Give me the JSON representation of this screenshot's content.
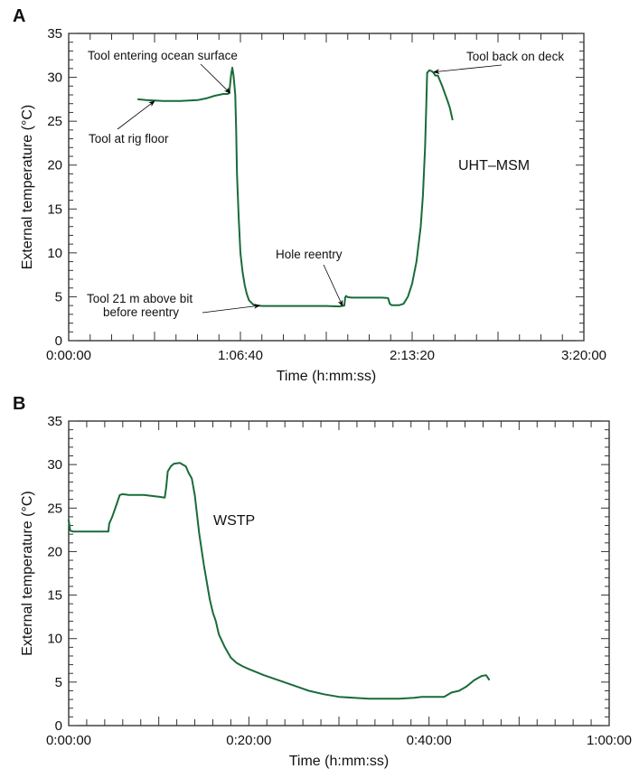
{
  "chart_data": [
    {
      "panel": "A",
      "type": "line",
      "title": "",
      "xlabel": "Time (h:mm:ss)",
      "ylabel": "External temperature (°C)",
      "xlim": [
        0,
        12000
      ],
      "ylim": [
        0,
        35
      ],
      "x_unit": "seconds",
      "x_ticks": [
        {
          "value": 0,
          "label": "0:00:00"
        },
        {
          "value": 4000,
          "label": "1:06:40"
        },
        {
          "value": 8000,
          "label": "2:13:20"
        },
        {
          "value": 12000,
          "label": "3:20:00"
        }
      ],
      "y_ticks": [
        0,
        5,
        10,
        15,
        20,
        25,
        30,
        35
      ],
      "grid": false,
      "series_label": "UHT–MSM",
      "series": [
        {
          "name": "UHT–MSM",
          "color": "#1a6b3a",
          "x": [
            1620,
            1800,
            2200,
            2600,
            3000,
            3200,
            3400,
            3600,
            3700,
            3740,
            3780,
            3810,
            3840,
            3880,
            3900,
            3920,
            3960,
            4000,
            4050,
            4100,
            4150,
            4200,
            4300,
            4400,
            4500,
            4600,
            5000,
            5500,
            6000,
            6300,
            6420,
            6440,
            6460,
            6500,
            6600,
            7000,
            7300,
            7440,
            7480,
            7520,
            7700,
            7800,
            7900,
            8000,
            8100,
            8200,
            8250,
            8300,
            8330,
            8350,
            8400,
            8460,
            8500,
            8540,
            8600,
            8650,
            8700,
            8760,
            8820,
            8880,
            8940
          ],
          "y": [
            27.5,
            27.4,
            27.3,
            27.3,
            27.4,
            27.6,
            27.9,
            28.1,
            28.1,
            28.2,
            30.2,
            31.1,
            30.2,
            28.0,
            24.0,
            19.0,
            14.0,
            10.0,
            7.8,
            6.3,
            5.3,
            4.6,
            4.1,
            4.0,
            3.95,
            3.95,
            3.95,
            3.95,
            3.95,
            3.9,
            4.0,
            4.9,
            5.1,
            4.95,
            4.9,
            4.9,
            4.9,
            4.85,
            4.2,
            4.05,
            4.05,
            4.2,
            5.0,
            6.5,
            9.0,
            13.0,
            16.5,
            22.0,
            27.0,
            30.5,
            30.8,
            30.7,
            30.5,
            30.2,
            30.2,
            29.6,
            29.0,
            28.2,
            27.4,
            26.5,
            25.2
          ]
        }
      ],
      "annotations": [
        {
          "text": "Tool entering ocean surface",
          "target": [
            3760,
            28.2
          ]
        },
        {
          "text": "Tool at rig floor",
          "target": [
            2000,
            27.3
          ]
        },
        {
          "text": "Tool back on deck",
          "target": [
            8500,
            30.6
          ]
        },
        {
          "text": "Hole reentry",
          "target": [
            6380,
            3.95
          ]
        },
        {
          "text": [
            "Tool 21 m above bit",
            "before reentry"
          ],
          "target": [
            4450,
            4.0
          ]
        }
      ]
    },
    {
      "panel": "B",
      "type": "line",
      "title": "",
      "xlabel": "Time (h:mm:ss)",
      "ylabel": "External temperature (°C)",
      "xlim": [
        0,
        3600
      ],
      "ylim": [
        0,
        35
      ],
      "x_unit": "seconds",
      "x_ticks": [
        {
          "value": 0,
          "label": "0:00:00"
        },
        {
          "value": 1200,
          "label": "0:20:00"
        },
        {
          "value": 2400,
          "label": "0:40:00"
        },
        {
          "value": 3600,
          "label": "1:00:00"
        }
      ],
      "y_ticks": [
        0,
        5,
        10,
        15,
        20,
        25,
        30,
        35
      ],
      "grid": false,
      "series_label": "WSTP",
      "series": [
        {
          "name": "WSTP",
          "color": "#1a6b3a",
          "x": [
            0,
            10,
            30,
            100,
            200,
            264,
            270,
            290,
            320,
            340,
            360,
            400,
            500,
            600,
            640,
            650,
            660,
            680,
            700,
            740,
            780,
            800,
            820,
            840,
            870,
            900,
            920,
            940,
            960,
            980,
            1000,
            1040,
            1080,
            1120,
            1160,
            1200,
            1300,
            1400,
            1500,
            1600,
            1700,
            1800,
            1900,
            2000,
            2100,
            2200,
            2300,
            2350,
            2400,
            2450,
            2500,
            2550,
            2600,
            2650,
            2700,
            2750,
            2780,
            2800
          ],
          "y": [
            23.6,
            22.4,
            22.3,
            22.3,
            22.3,
            22.3,
            23.2,
            24.0,
            25.5,
            26.5,
            26.6,
            26.5,
            26.5,
            26.3,
            26.2,
            27.5,
            29.2,
            29.8,
            30.1,
            30.2,
            29.8,
            29.0,
            28.4,
            26.5,
            22.0,
            18.5,
            16.5,
            14.5,
            13.0,
            12.0,
            10.5,
            9.0,
            7.8,
            7.2,
            6.8,
            6.5,
            5.8,
            5.2,
            4.6,
            4.0,
            3.6,
            3.3,
            3.2,
            3.1,
            3.1,
            3.1,
            3.2,
            3.3,
            3.3,
            3.3,
            3.3,
            3.8,
            4.0,
            4.5,
            5.2,
            5.7,
            5.8,
            5.3
          ]
        }
      ],
      "annotations": []
    }
  ]
}
